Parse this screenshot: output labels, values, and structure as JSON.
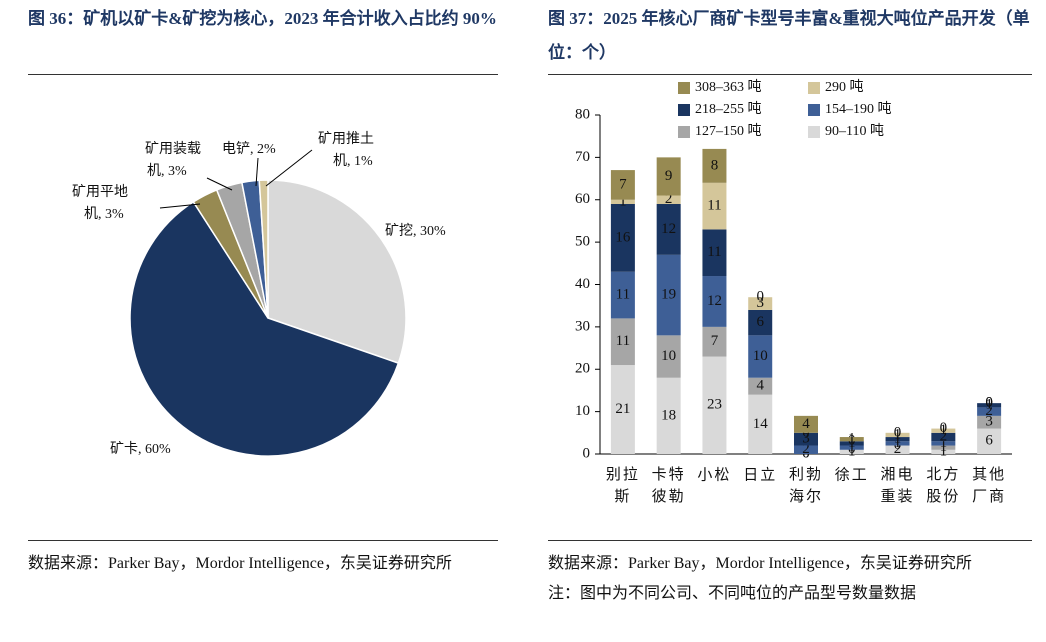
{
  "figures": [
    {
      "title": "图 36：矿机以矿卡&矿挖为核心，2023 年合计收入占比约 90%",
      "source": "数据来源：Parker Bay，Mordor Intelligence，东吴证券研究所"
    },
    {
      "title": "图 37：2025 年核心厂商矿卡型号丰富&重视大吨位产品开发（单位：个）",
      "source": "数据来源：Parker Bay，Mordor Intelligence，东吴证券研究所",
      "note": "注：图中为不同公司、不同吨位的产品型号数量数据"
    }
  ],
  "chart_data": [
    {
      "type": "pie",
      "values": [
        30,
        60,
        3,
        3,
        2,
        1
      ],
      "value_labels": [
        "矿挖, 30%",
        "矿卡, 60%",
        "矿用平地机, 3%",
        "矿用装载机, 3%",
        "电铲, 2%",
        "矿用推土机, 1%"
      ],
      "colors": [
        "#d9d9d9",
        "#1a3560",
        "#978a52",
        "#a6a6a6",
        "#3e5f96",
        "#d4c69a"
      ]
    },
    {
      "type": "stacked_bar",
      "categories": [
        "别拉斯",
        "卡特彼勒",
        "小松",
        "日立",
        "利勃海尔",
        "徐工",
        "湘电重装",
        "北方股份",
        "其他厂商"
      ],
      "series": [
        {
          "name": "90–110 吨",
          "color": "#d9d9d9",
          "values": [
            21,
            18,
            23,
            14,
            0,
            1,
            2,
            1,
            6
          ]
        },
        {
          "name": "127–150 吨",
          "color": "#a6a6a6",
          "values": [
            11,
            10,
            7,
            4,
            0,
            0,
            0,
            1,
            3
          ]
        },
        {
          "name": "154–190 吨",
          "color": "#3e5f96",
          "values": [
            11,
            19,
            12,
            10,
            2,
            1,
            1,
            1,
            2
          ]
        },
        {
          "name": "218–255 吨",
          "color": "#1a3560",
          "values": [
            16,
            12,
            11,
            6,
            3,
            1,
            1,
            2,
            1
          ]
        },
        {
          "name": "290 吨",
          "color": "#d4c69a",
          "values": [
            1,
            2,
            11,
            3,
            0,
            0,
            1,
            1,
            0
          ]
        },
        {
          "name": "308–363 吨",
          "color": "#978a52",
          "values": [
            7,
            9,
            8,
            0,
            4,
            1,
            0,
            0,
            0
          ]
        }
      ],
      "ylim": [
        0,
        80
      ],
      "yticks": [
        0,
        10,
        20,
        30,
        40,
        50,
        60,
        70,
        80
      ]
    }
  ]
}
